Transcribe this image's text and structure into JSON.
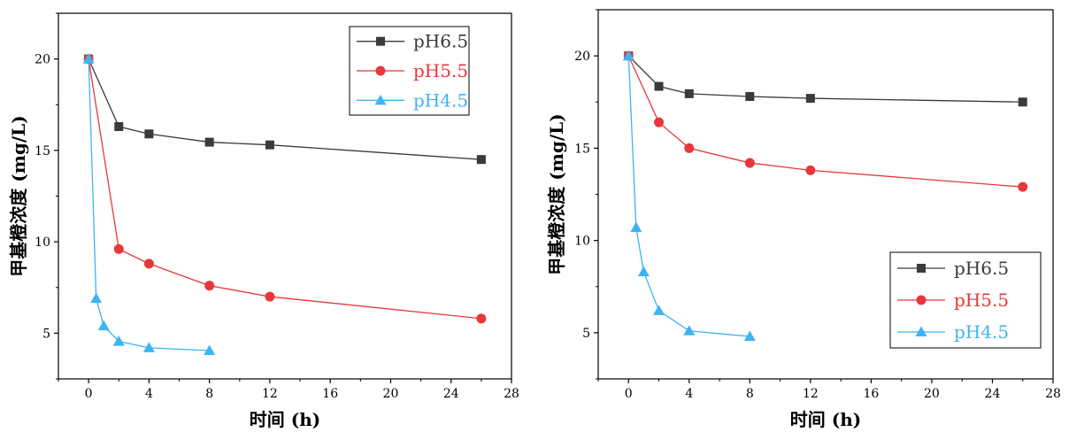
{
  "colors": {
    "pH6.5": "#3a3a3a",
    "pH5.5": "#e8373a",
    "pH4.5": "#3db4f2",
    "axis": "#000000",
    "background": "#ffffff"
  },
  "chart_data": [
    {
      "type": "line",
      "xlabel": "时间 (h)",
      "ylabel": "甲基橙浓度 (mg/L)",
      "xlim": [
        -2,
        28
      ],
      "ylim": [
        2.5,
        22.5
      ],
      "xticks": [
        0,
        4,
        8,
        12,
        16,
        20,
        24,
        28
      ],
      "yticks": [
        5,
        10,
        15,
        20
      ],
      "grid": false,
      "legend_position": "top-right",
      "series": [
        {
          "name": "pH6.5",
          "marker": "square",
          "x": [
            0,
            2,
            4,
            8,
            12,
            26
          ],
          "y": [
            20.0,
            16.3,
            15.9,
            15.45,
            15.3,
            14.5
          ]
        },
        {
          "name": "pH5.5",
          "marker": "circle",
          "x": [
            0,
            2,
            4,
            8,
            12,
            26
          ],
          "y": [
            20.0,
            9.6,
            8.8,
            7.6,
            7.0,
            5.8
          ]
        },
        {
          "name": "pH4.5",
          "marker": "triangle",
          "x": [
            0,
            0.5,
            1,
            2,
            4,
            8
          ],
          "y": [
            20.0,
            6.9,
            5.4,
            4.55,
            4.2,
            4.05
          ]
        }
      ]
    },
    {
      "type": "line",
      "xlabel": "时间 (h)",
      "ylabel": "甲基橙浓度 (mg/L)",
      "xlim": [
        -2,
        28
      ],
      "ylim": [
        2.5,
        22.5
      ],
      "xticks": [
        0,
        4,
        8,
        12,
        16,
        20,
        24,
        28
      ],
      "yticks": [
        5,
        10,
        15,
        20
      ],
      "grid": false,
      "legend_position": "bottom-right",
      "series": [
        {
          "name": "pH6.5",
          "marker": "square",
          "x": [
            0,
            2,
            4,
            8,
            12,
            26
          ],
          "y": [
            20.0,
            18.35,
            17.95,
            17.8,
            17.7,
            17.5
          ]
        },
        {
          "name": "pH5.5",
          "marker": "circle",
          "x": [
            0,
            2,
            4,
            8,
            12,
            26
          ],
          "y": [
            20.0,
            16.4,
            15.0,
            14.2,
            13.8,
            12.9
          ]
        },
        {
          "name": "pH4.5",
          "marker": "triangle",
          "x": [
            0,
            0.5,
            1,
            2,
            4,
            8
          ],
          "y": [
            20.0,
            10.7,
            8.3,
            6.2,
            5.1,
            4.8
          ]
        }
      ]
    }
  ]
}
